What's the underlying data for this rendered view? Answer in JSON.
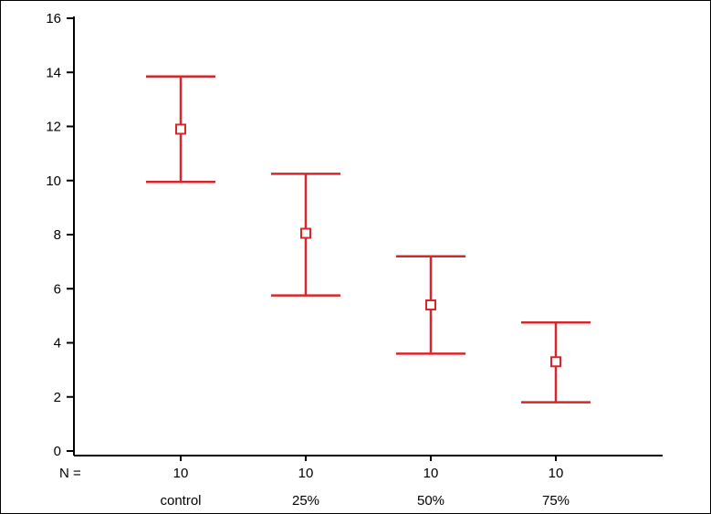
{
  "chart_data": {
    "type": "errorbar",
    "title": "",
    "xlabel": "",
    "ylabel": "",
    "categories": [
      "control",
      "25%",
      "50%",
      "75%"
    ],
    "n_prefix": "N =",
    "n_values": [
      "10",
      "10",
      "10",
      "10"
    ],
    "series": [
      {
        "means": [
          11.9,
          8.05,
          5.4,
          3.3
        ],
        "lower": [
          9.95,
          5.75,
          3.6,
          1.8
        ],
        "upper": [
          13.85,
          10.25,
          7.2,
          4.75
        ]
      }
    ],
    "ylim": [
      0,
      16
    ],
    "yticks": [
      0,
      2,
      4,
      6,
      8,
      10,
      12,
      14,
      16
    ],
    "ytick_labels": [
      "0",
      "2",
      "4",
      "6",
      "8",
      "10",
      "12",
      "14",
      "16"
    ],
    "grid": false,
    "legend": "none",
    "colors": {
      "errorbar": "#d7262c",
      "axis": "#000000"
    }
  }
}
